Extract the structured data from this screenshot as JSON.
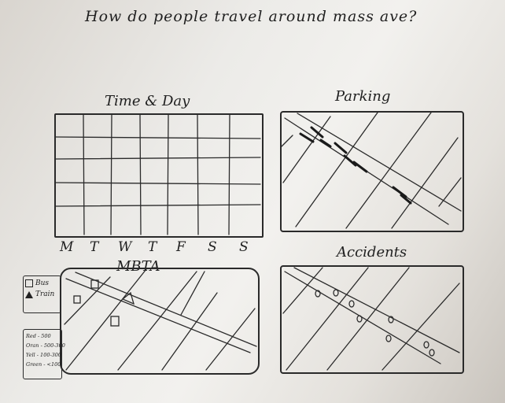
{
  "page": {
    "title": "How do people travel around mass ave?"
  },
  "panels": {
    "time_day": {
      "title": "Time & Day",
      "days": [
        "M",
        "T",
        "W",
        "T",
        "F",
        "S",
        "S"
      ]
    },
    "parking": {
      "title": "Parking"
    },
    "mbta": {
      "title": "MBTA",
      "legend": [
        {
          "icon": "bus-square-icon",
          "label": "Bus"
        },
        {
          "icon": "train-triangle-icon",
          "label": "Train"
        }
      ],
      "scale": [
        {
          "label": "Red - 500"
        },
        {
          "label": "Oran - 500-300"
        },
        {
          "label": "Yell - 100-300"
        },
        {
          "label": "Green - <100"
        }
      ]
    },
    "accidents": {
      "title": "Accidents"
    }
  }
}
